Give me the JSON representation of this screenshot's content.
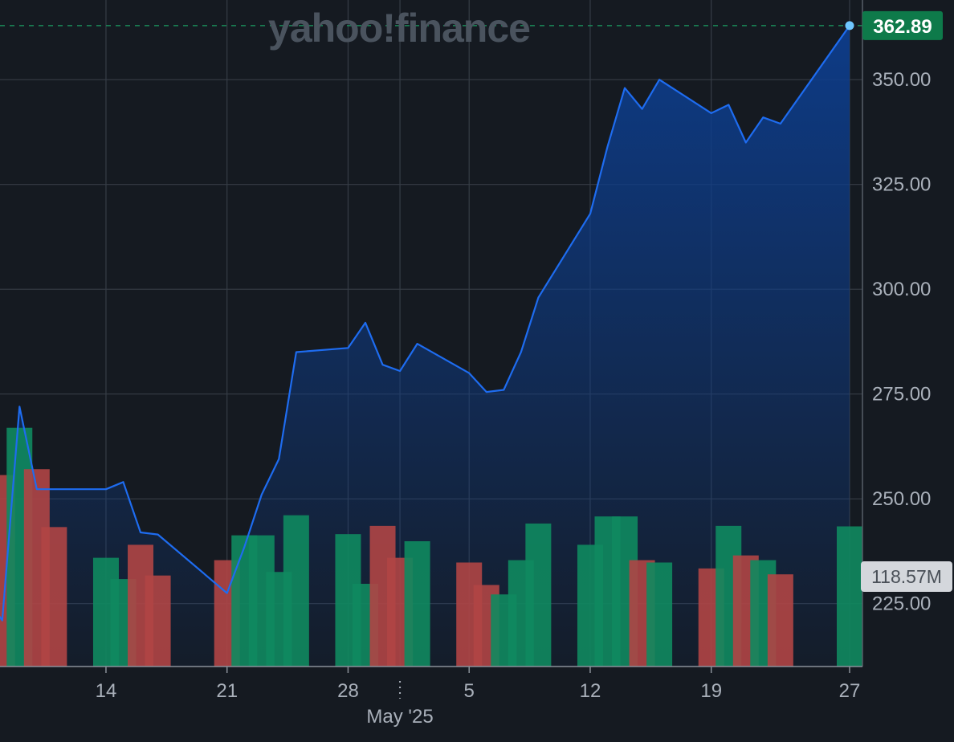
{
  "brand": "yahoo!finance",
  "colors": {
    "background": "#151a21",
    "grid": "#363d46",
    "price_line": "#1e6cf0",
    "area_top": "#0f3a80",
    "volume_up": "#0f8a5f",
    "volume_down": "#b04545",
    "last_price_badge": "#0e7a4a",
    "volume_badge": "#d4d7dc"
  },
  "chart_data": {
    "type": "line",
    "title": "",
    "xlabel": "",
    "ylabel": "",
    "ylim": [
      210,
      369
    ],
    "y_ticks": [
      "225.00",
      "250.00",
      "275.00",
      "300.00",
      "325.00",
      "350.00"
    ],
    "x_ticks": [
      "14",
      "21",
      "28",
      "5",
      "12",
      "19",
      "27"
    ],
    "x_ticks_month_label": "May '25",
    "last_price_label": "362.89",
    "last_volume_label": "118.57M",
    "dates": [
      "2025-04-07",
      "2025-04-08",
      "2025-04-09",
      "2025-04-10",
      "2025-04-11",
      "2025-04-14",
      "2025-04-15",
      "2025-04-16",
      "2025-04-17",
      "2025-04-21",
      "2025-04-22",
      "2025-04-23",
      "2025-04-24",
      "2025-04-25",
      "2025-04-28",
      "2025-04-29",
      "2025-04-30",
      "2025-05-01",
      "2025-05-02",
      "2025-05-05",
      "2025-05-06",
      "2025-05-07",
      "2025-05-08",
      "2025-05-09",
      "2025-05-12",
      "2025-05-13",
      "2025-05-14",
      "2025-05-15",
      "2025-05-16",
      "2025-05-19",
      "2025-05-20",
      "2025-05-21",
      "2025-05-22",
      "2025-05-23",
      "2025-05-27"
    ],
    "series": [
      {
        "values": [
          227,
          221,
          272,
          252.3,
          252.3,
          252.3,
          254,
          242,
          241.5,
          227.5,
          238.5,
          251,
          259.5,
          285,
          286,
          292,
          282,
          280.5,
          287,
          280,
          275.5,
          276,
          285,
          298,
          318,
          334,
          348,
          343,
          350,
          342,
          344,
          335,
          341,
          339.5,
          362.89
        ]
      }
    ],
    "volume": {
      "max_visible_M": 265,
      "values_M": [
        140,
        162,
        202,
        167,
        118,
        92,
        74,
        103,
        77,
        90,
        111,
        111,
        80,
        128,
        112,
        70,
        119,
        92,
        106,
        88,
        69,
        61,
        90,
        121,
        103,
        127,
        127,
        90,
        88,
        83,
        119,
        94,
        90,
        78,
        118.57
      ],
      "direction": [
        "down",
        "down",
        "up",
        "down",
        "down",
        "up",
        "up",
        "down",
        "down",
        "down",
        "up",
        "up",
        "up",
        "up",
        "up",
        "up",
        "down",
        "down",
        "up",
        "down",
        "down",
        "up",
        "up",
        "up",
        "up",
        "up",
        "up",
        "down",
        "up",
        "down",
        "up",
        "down",
        "up",
        "down",
        "up"
      ]
    }
  }
}
